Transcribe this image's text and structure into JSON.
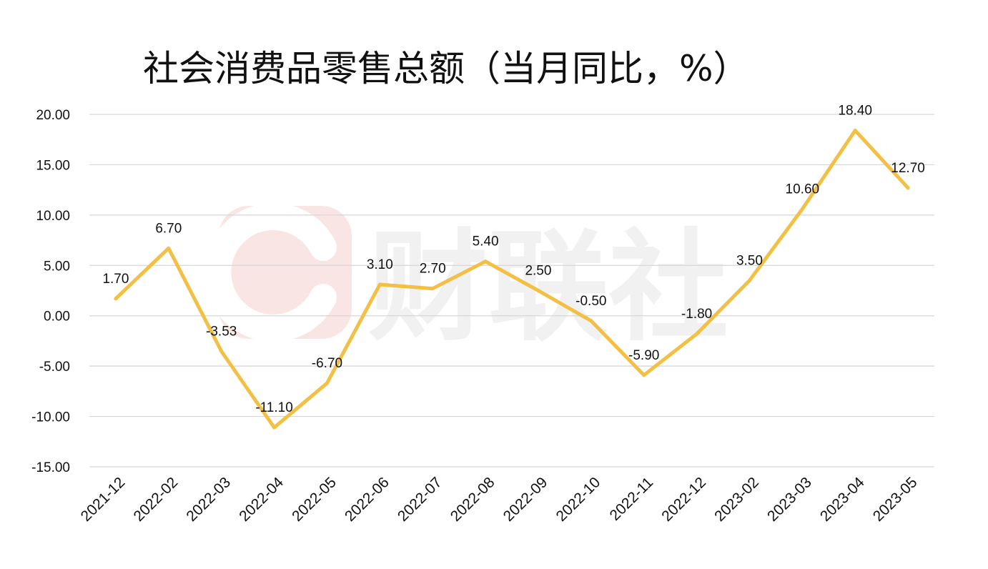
{
  "watermark": {
    "text": "财联社",
    "icon": "c-logo-icon",
    "logo_color": "#f9e6e4",
    "text_color": "#f1f1f1"
  },
  "chart_data": {
    "type": "line",
    "title": "社会消费品零售总额（当月同比，%）",
    "xlabel": "",
    "ylabel": "",
    "ylim": [
      -15,
      20
    ],
    "yticks": [
      20,
      15,
      10,
      5,
      0,
      -5,
      -10,
      -15
    ],
    "ytick_labels": [
      "20.00",
      "15.00",
      "10.00",
      "5.00",
      "0.00",
      "-5.00",
      "-10.00",
      "-15.00"
    ],
    "grid": true,
    "legend": "none",
    "categories": [
      "2021-12",
      "2022-02",
      "2022-03",
      "2022-04",
      "2022-05",
      "2022-06",
      "2022-07",
      "2022-08",
      "2022-09",
      "2022-10",
      "2022-11",
      "2022-12",
      "2023-02",
      "2023-03",
      "2023-04",
      "2023-05"
    ],
    "series": [
      {
        "color": "#f2c044",
        "values": [
          1.7,
          6.7,
          -3.53,
          -11.1,
          -6.7,
          3.1,
          2.7,
          5.4,
          2.5,
          -0.5,
          -5.9,
          -1.8,
          3.5,
          10.6,
          18.4,
          12.7
        ],
        "labels": [
          "1.70",
          "6.70",
          "-3.53",
          "-11.10",
          "-6.70",
          "3.10",
          "2.70",
          "5.40",
          "2.50",
          "-0.50",
          "-5.90",
          "-1.80",
          "3.50",
          "10.60",
          "18.40",
          "12.70"
        ]
      }
    ]
  }
}
